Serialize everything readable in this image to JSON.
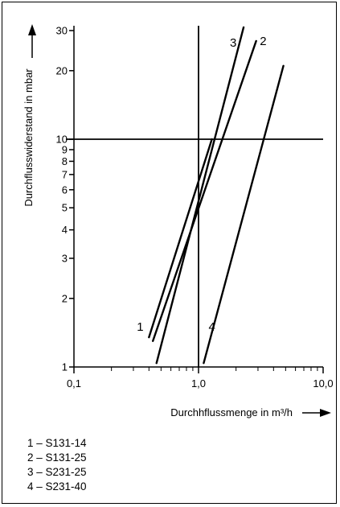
{
  "chart_data": {
    "type": "line",
    "x_scale": "log",
    "y_scale": "log",
    "xlim": [
      0.1,
      10
    ],
    "ylim": [
      1,
      30
    ],
    "xlabel": "Durchhflussmenge in m³/h",
    "ylabel": "Durchflusswiderstand in mbar",
    "x_tick_labels": [
      {
        "value": 0.1,
        "label": "0,1"
      },
      {
        "value": 1,
        "label": "1,0"
      },
      {
        "value": 10,
        "label": "10,0"
      }
    ],
    "y_tick_labels": [
      {
        "value": 1,
        "label": "1"
      },
      {
        "value": 2,
        "label": "2"
      },
      {
        "value": 3,
        "label": "3"
      },
      {
        "value": 4,
        "label": "4"
      },
      {
        "value": 5,
        "label": "5"
      },
      {
        "value": 6,
        "label": "6"
      },
      {
        "value": 7,
        "label": "7"
      },
      {
        "value": 8,
        "label": "8"
      },
      {
        "value": 9,
        "label": "9"
      },
      {
        "value": 10,
        "label": "10"
      },
      {
        "value": 20,
        "label": "20"
      },
      {
        "value": 30,
        "label": "30"
      }
    ],
    "reference_lines": {
      "x": 1,
      "y": 10
    },
    "series": [
      {
        "name": "1",
        "points": [
          [
            0.4,
            1.35
          ],
          [
            1.28,
            10
          ]
        ],
        "label_at": [
          0.34,
          1.5
        ]
      },
      {
        "name": "2",
        "points": [
          [
            0.43,
            1.3
          ],
          [
            2.9,
            27
          ]
        ],
        "label_at": [
          3.3,
          27
        ]
      },
      {
        "name": "3",
        "points": [
          [
            0.46,
            1.04
          ],
          [
            2.3,
            31
          ]
        ],
        "label_at": [
          1.9,
          26.5
        ]
      },
      {
        "name": "4",
        "points": [
          [
            1.1,
            1.04
          ],
          [
            4.8,
            21
          ]
        ],
        "label_at": [
          1.28,
          1.5
        ]
      }
    ]
  },
  "legend": [
    "1 – S131-14",
    "2 – S131-25",
    "3 – S231-25",
    "4 – S231-40"
  ]
}
